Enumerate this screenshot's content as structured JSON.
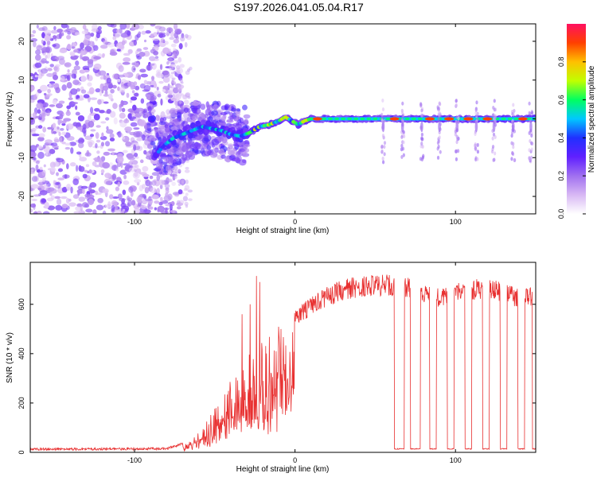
{
  "title": "S197.2026.041.05.04.R17",
  "chart_data": [
    {
      "type": "heatmap",
      "xlabel": "Height of straight line (km)",
      "ylabel": "Frequency (Hz)",
      "xlim": [
        -165,
        150
      ],
      "ylim": [
        -24.5,
        24.5
      ],
      "xticks": [
        -100,
        0,
        100
      ],
      "yticks": [
        -20,
        -10,
        0,
        10,
        20
      ],
      "colorbar": {
        "label": "Normalized spectral amplitude",
        "range": [
          0.0,
          1.0
        ],
        "ticks": [
          0.0,
          0.2,
          0.4,
          0.6,
          0.8
        ],
        "tick_labels": [
          "0.0",
          "0.2",
          "0.4",
          "0.6",
          "0.8"
        ],
        "colormap": [
          "#ffffff",
          "#d8b8f4",
          "#a070f0",
          "#6020ff",
          "#2030ff",
          "#00c8ff",
          "#00ff60",
          "#c0ff00",
          "#ffc000",
          "#ff4000",
          "#ff1060"
        ]
      },
      "features": {
        "noise_region_x": [
          -165,
          -70
        ],
        "ridge": [
          [
            -88,
            -10
          ],
          [
            -82,
            -7
          ],
          [
            -76,
            -5
          ],
          [
            -70,
            -4
          ],
          [
            -64,
            -3
          ],
          [
            -58,
            -2
          ],
          [
            -52,
            -2.5
          ],
          [
            -46,
            -3
          ],
          [
            -40,
            -4
          ],
          [
            -34,
            -4.5
          ],
          [
            -28,
            -3.5
          ],
          [
            -22,
            -2
          ],
          [
            -16,
            -1.5
          ],
          [
            -10,
            -0.5
          ],
          [
            -6,
            0.5
          ],
          [
            -2,
            -0.5
          ],
          [
            2,
            -1.5
          ],
          [
            6,
            -0.5
          ],
          [
            10,
            0
          ],
          [
            150,
            0
          ]
        ],
        "dropout_x": [
          55,
          67,
          79,
          90,
          101,
          113,
          124,
          136,
          147
        ]
      }
    },
    {
      "type": "line",
      "xlabel": "Height of straight line (km)",
      "ylabel": "SNR (10 * v/v)",
      "xlim": [
        -165,
        150
      ],
      "ylim": [
        0,
        770
      ],
      "xticks": [
        -100,
        0,
        100
      ],
      "yticks": [
        0,
        200,
        400,
        600
      ],
      "color": "#e83030",
      "series": [
        {
          "name": "SNR",
          "envelope": [
            [
              -165,
              18
            ],
            [
              -120,
              18
            ],
            [
              -80,
              20
            ],
            [
              -70,
              40
            ],
            [
              -60,
              80
            ],
            [
              -50,
              180
            ],
            [
              -40,
              300
            ],
            [
              -30,
              400
            ],
            [
              -20,
              470
            ],
            [
              -10,
              520
            ],
            [
              0,
              580
            ],
            [
              10,
              630
            ],
            [
              20,
              670
            ],
            [
              30,
              700
            ],
            [
              40,
              715
            ],
            [
              50,
              720
            ],
            [
              60,
              720
            ],
            [
              70,
              715
            ],
            [
              80,
              680
            ],
            [
              90,
              670
            ],
            [
              100,
              690
            ],
            [
              110,
              700
            ],
            [
              120,
              710
            ],
            [
              130,
              690
            ],
            [
              140,
              660
            ],
            [
              150,
              670
            ]
          ],
          "spikes": [
            [
              -24,
              715
            ],
            [
              -22,
              690
            ],
            [
              -28,
              600
            ],
            [
              -33,
              560
            ]
          ],
          "dropouts": [
            [
              62,
              68
            ],
            [
              72,
              78
            ],
            [
              84,
              88
            ],
            [
              95,
              99
            ],
            [
              106,
              110
            ],
            [
              117,
              121
            ],
            [
              128,
              132
            ],
            [
              139,
              143
            ],
            [
              148,
              150
            ]
          ],
          "dropout_level": 12
        }
      ]
    }
  ]
}
